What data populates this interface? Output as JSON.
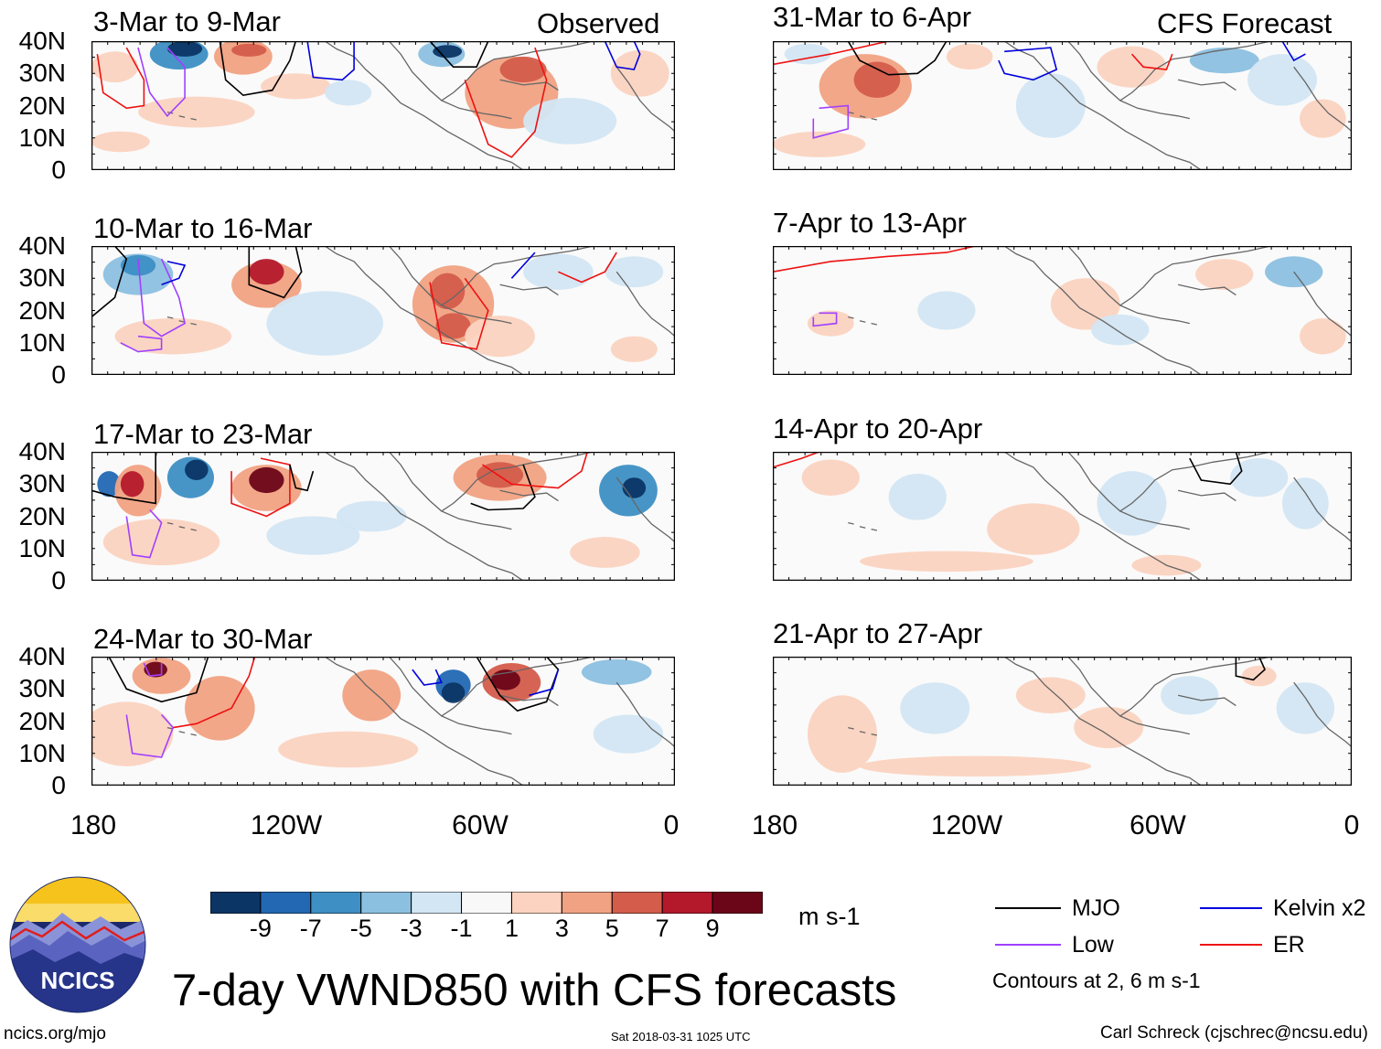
{
  "figure_title": "7-day VWND850 with CFS forecasts",
  "observed_label": "Observed",
  "forecast_label": "CFS Forecast",
  "y_ticks": [
    "40N",
    "30N",
    "20N",
    "10N",
    "0"
  ],
  "x_ticks": [
    "180",
    "120W",
    "60W",
    "0"
  ],
  "observed_panels": [
    {
      "title": "3-Mar to 9-Mar"
    },
    {
      "title": "10-Mar to 16-Mar"
    },
    {
      "title": "17-Mar to 23-Mar"
    },
    {
      "title": "24-Mar to 30-Mar"
    }
  ],
  "forecast_panels": [
    {
      "title": "31-Mar to 6-Apr"
    },
    {
      "title": "7-Apr to 13-Apr"
    },
    {
      "title": "14-Apr to 20-Apr"
    },
    {
      "title": "21-Apr to 27-Apr"
    }
  ],
  "colorbar": {
    "units": "m s-1",
    "labels": [
      "-9",
      "-7",
      "-5",
      "-3",
      "-1",
      "1",
      "3",
      "5",
      "7",
      "9"
    ],
    "colors": [
      "#0b3565",
      "#2268b3",
      "#3d8fc4",
      "#8cc0e0",
      "#d3e6f3",
      "#f8f8f8",
      "#fbd3c0",
      "#f1a283",
      "#d45c4b",
      "#b3192b",
      "#6b0518"
    ]
  },
  "legend": {
    "items": [
      {
        "label": "MJO",
        "color": "#000000"
      },
      {
        "label": "Kelvin x2",
        "color": "#0000dd"
      },
      {
        "label": "Low",
        "color": "#a040ff"
      },
      {
        "label": "ER",
        "color": "#ee1111"
      }
    ],
    "contours_note": "Contours at 2, 6 m s-1"
  },
  "logo": {
    "text": "NCICS"
  },
  "footer": {
    "left": "ncics.org/mjo",
    "center": "Sat 2018-03-31 1025 UTC",
    "right": "Carl Schreck (cjschrec@ncsu.edu)"
  }
}
